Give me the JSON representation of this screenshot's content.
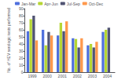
{
  "chart_data": {
    "type": "bar",
    "categories": [
      "1999",
      "2000",
      "2001",
      "2002",
      "2003",
      "2004"
    ],
    "series": [
      {
        "name": "Jan-Mar",
        "values": [
          58,
          60,
          52,
          48,
          38,
          57
        ]
      },
      {
        "name": "Apr-Jun",
        "values": [
          75,
          38,
          70,
          47,
          40,
          60
        ]
      },
      {
        "name": "Jul-Sep",
        "values": [
          80,
          57,
          58,
          35,
          35,
          63
        ]
      },
      {
        "name": "Oct-Dec",
        "values": [
          45,
          52,
          72,
          48,
          43,
          0
        ]
      }
    ],
    "ylabel": "No. of HEV serologic tests performed",
    "ylim": [
      0,
      90
    ],
    "yticks": [
      0,
      10,
      20,
      30,
      40,
      50,
      60,
      70,
      80,
      90
    ],
    "grid": false,
    "legend": "top"
  }
}
